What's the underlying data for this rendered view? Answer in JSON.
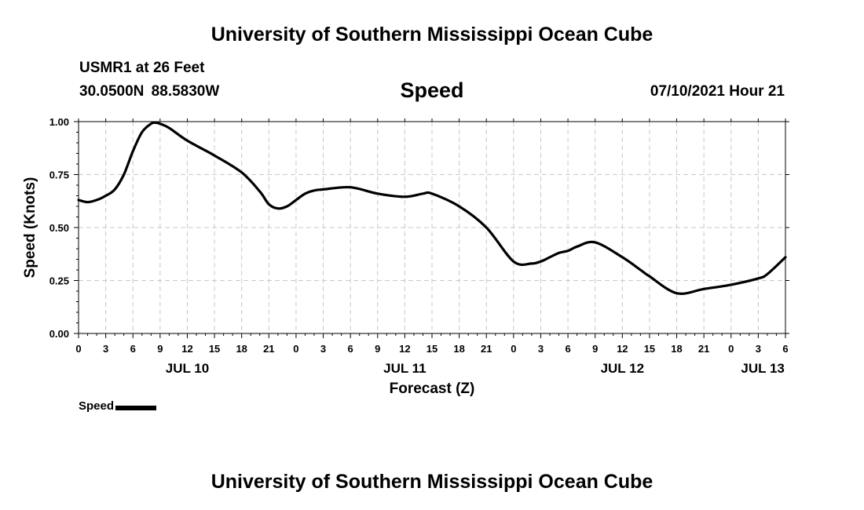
{
  "header": {
    "title": "University of Southern Mississippi Ocean Cube",
    "station": "USMR1 at 26 Feet",
    "coords": "30.0500N  88.5830W",
    "variable": "Speed",
    "datetime": "07/10/2021 Hour 21"
  },
  "footer": {
    "title": "University of Southern Mississippi Ocean Cube"
  },
  "legend": {
    "label": "Speed"
  },
  "colors": {
    "line": "#000000",
    "grid": "#c8c8c8"
  },
  "chart_data": {
    "type": "line",
    "title": "Speed",
    "xlabel": "Forecast (Z)",
    "ylabel": "Speed (Knots)",
    "x_unit": "hours since 00Z JUL 10",
    "xlim": [
      0,
      78
    ],
    "ylim": [
      0,
      1
    ],
    "y_ticks": [
      0,
      0.25,
      0.5,
      0.75,
      1.0
    ],
    "y_tick_labels": [
      "0.00",
      "0.25",
      "0.50",
      "0.75",
      "1.00"
    ],
    "x_ticks": [
      0,
      3,
      6,
      9,
      12,
      15,
      18,
      21,
      24,
      27,
      30,
      33,
      36,
      39,
      42,
      45,
      48,
      51,
      54,
      57,
      60,
      63,
      66,
      69,
      72,
      75,
      78
    ],
    "x_tick_labels": [
      "0",
      "3",
      "6",
      "9",
      "12",
      "15",
      "18",
      "21",
      "0",
      "3",
      "6",
      "9",
      "12",
      "15",
      "18",
      "21",
      "0",
      "3",
      "6",
      "9",
      "12",
      "15",
      "18",
      "21",
      "0",
      "3",
      "6"
    ],
    "date_labels": [
      {
        "label": "JUL 10",
        "x": 12
      },
      {
        "label": "JUL 11",
        "x": 36
      },
      {
        "label": "JUL 12",
        "x": 60
      },
      {
        "label": "JUL 13",
        "x": 75.5
      }
    ],
    "grid": true,
    "series": [
      {
        "name": "Speed",
        "x": [
          0,
          1,
          2,
          3,
          4,
          5,
          6,
          7,
          8,
          8.5,
          9,
          10,
          12,
          15,
          18,
          20,
          21,
          22,
          23,
          24,
          25,
          26,
          27,
          30,
          33,
          36,
          38,
          39,
          42,
          45,
          48,
          50,
          51,
          52,
          53,
          54,
          55,
          57,
          60,
          62,
          63,
          66,
          69,
          72,
          75,
          76,
          78
        ],
        "values": [
          0.63,
          0.62,
          0.63,
          0.65,
          0.68,
          0.75,
          0.86,
          0.95,
          0.99,
          0.995,
          0.99,
          0.97,
          0.91,
          0.84,
          0.76,
          0.67,
          0.61,
          0.59,
          0.6,
          0.63,
          0.66,
          0.675,
          0.68,
          0.69,
          0.66,
          0.645,
          0.66,
          0.66,
          0.6,
          0.5,
          0.34,
          0.33,
          0.34,
          0.36,
          0.38,
          0.39,
          0.41,
          0.43,
          0.36,
          0.3,
          0.27,
          0.19,
          0.21,
          0.23,
          0.26,
          0.28,
          0.36
        ]
      }
    ]
  }
}
